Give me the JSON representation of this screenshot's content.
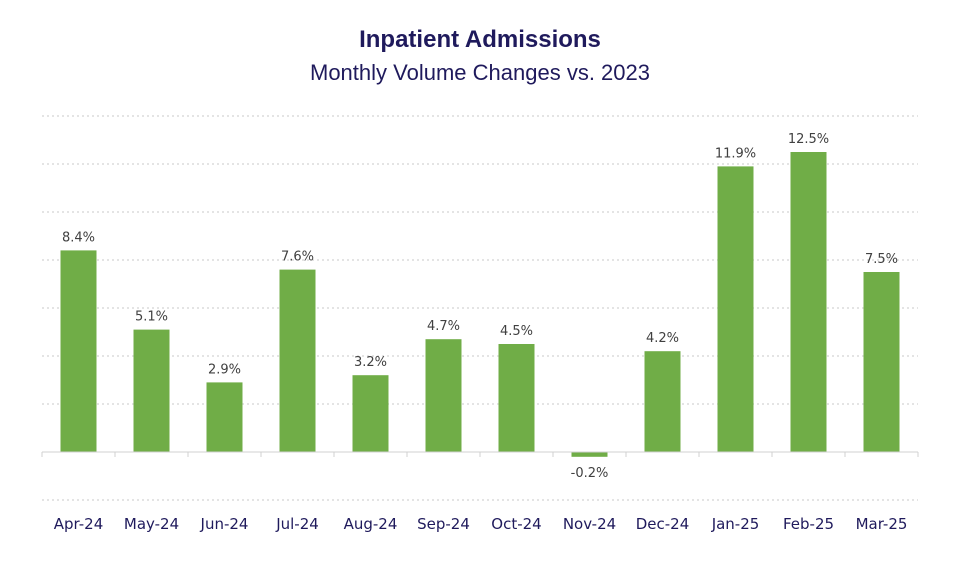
{
  "chart_data": {
    "type": "bar",
    "title": "Inpatient Admissions",
    "subtitle": "Monthly Volume Changes vs. 2023",
    "categories": [
      "Apr-24",
      "May-24",
      "Jun-24",
      "Jul-24",
      "Aug-24",
      "Sep-24",
      "Oct-24",
      "Nov-24",
      "Dec-24",
      "Jan-25",
      "Feb-25",
      "Mar-25"
    ],
    "values": [
      8.4,
      5.1,
      2.9,
      7.6,
      3.2,
      4.7,
      4.5,
      -0.2,
      4.2,
      11.9,
      12.5,
      7.5
    ],
    "data_labels": [
      "8.4%",
      "5.1%",
      "2.9%",
      "7.6%",
      "3.2%",
      "4.7%",
      "4.5%",
      "-0.2%",
      "4.2%",
      "11.9%",
      "12.5%",
      "7.5%"
    ],
    "xlabel": "",
    "ylabel": "",
    "ylim": [
      -2,
      14
    ],
    "gridlines": [
      -2,
      0,
      2,
      4,
      6,
      8,
      10,
      12,
      14
    ],
    "grid": true,
    "bar_color": "#70ad47"
  }
}
